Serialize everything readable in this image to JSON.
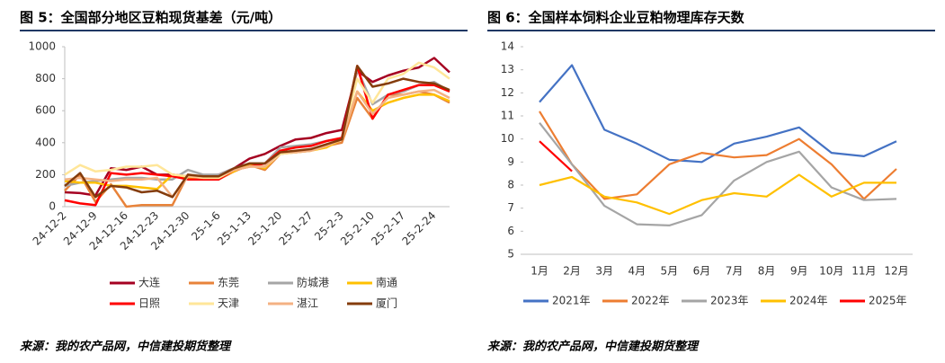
{
  "chart_data": [
    {
      "type": "line",
      "title": "图 5：全国部分地区豆粕现货基差（元/吨）",
      "source": "来源：我的农产品网，中信建投期货整理",
      "categories": [
        "24-12-2",
        null,
        "24-12-9",
        null,
        "24-12-16",
        null,
        "24-12-23",
        null,
        "24-12-30",
        null,
        "25-1-6",
        null,
        "25-1-13",
        null,
        "25-1-20",
        null,
        "25-1-27",
        null,
        "25-2-3",
        null,
        "25-2-10",
        null,
        "25-2-17",
        null,
        "25-2-24",
        null
      ],
      "ylim": [
        0,
        1000
      ],
      "yticks": [
        0,
        200,
        400,
        600,
        800,
        1000
      ],
      "series": [
        {
          "name": "大连",
          "color": "#a50021",
          "values": [
            90,
            85,
            70,
            240,
            230,
            250,
            200,
            200,
            190,
            185,
            200,
            240,
            300,
            330,
            380,
            420,
            430,
            460,
            480,
            850,
            780,
            820,
            850,
            870,
            930,
            840
          ]
        },
        {
          "name": "东莞",
          "color": "#e8833a",
          "values": [
            100,
            200,
            30,
            140,
            0,
            10,
            10,
            10,
            200,
            170,
            170,
            220,
            260,
            230,
            330,
            340,
            350,
            380,
            400,
            680,
            550,
            700,
            700,
            720,
            700,
            650
          ]
        },
        {
          "name": "防城港",
          "color": "#a6a6a6",
          "values": [
            130,
            150,
            160,
            170,
            180,
            180,
            170,
            170,
            230,
            200,
            200,
            240,
            270,
            270,
            370,
            380,
            390,
            410,
            430,
            860,
            640,
            700,
            720,
            760,
            780,
            720
          ]
        },
        {
          "name": "南通",
          "color": "#ffc000",
          "values": [
            160,
            150,
            150,
            130,
            130,
            120,
            110,
            200,
            180,
            170,
            180,
            220,
            270,
            240,
            340,
            340,
            350,
            370,
            420,
            720,
            600,
            650,
            680,
            700,
            700,
            660
          ]
        },
        {
          "name": "日照",
          "color": "#ff0000",
          "values": [
            40,
            20,
            10,
            210,
            200,
            210,
            200,
            190,
            170,
            170,
            170,
            230,
            250,
            270,
            350,
            370,
            380,
            410,
            430,
            880,
            550,
            700,
            730,
            760,
            760,
            720
          ]
        },
        {
          "name": "天津",
          "color": "#ffe699",
          "values": [
            200,
            260,
            220,
            230,
            250,
            250,
            260,
            200,
            190,
            180,
            180,
            230,
            250,
            250,
            330,
            340,
            350,
            380,
            420,
            800,
            650,
            800,
            830,
            900,
            870,
            800
          ]
        },
        {
          "name": "湛江",
          "color": "#f4b183",
          "values": [
            170,
            180,
            170,
            160,
            170,
            170,
            180,
            60,
            190,
            190,
            190,
            230,
            250,
            250,
            340,
            340,
            350,
            380,
            420,
            720,
            580,
            680,
            700,
            720,
            730,
            680
          ]
        },
        {
          "name": "厦门",
          "color": "#843c0c",
          "values": [
            130,
            210,
            60,
            130,
            120,
            90,
            100,
            60,
            200,
            190,
            190,
            240,
            270,
            270,
            340,
            350,
            360,
            390,
            420,
            880,
            750,
            770,
            800,
            780,
            770,
            730
          ]
        }
      ]
    },
    {
      "type": "line",
      "title": "图 6：全国样本饲料企业豆粕物理库存天数",
      "source": "来源：我的农产品网，中信建投期货整理",
      "categories": [
        "1月",
        "2月",
        "3月",
        "4月",
        "5月",
        "6月",
        "7月",
        "8月",
        "9月",
        "10月",
        "11月",
        "12月"
      ],
      "ylim": [
        5,
        14
      ],
      "yticks": [
        5,
        6,
        7,
        8,
        9,
        10,
        11,
        12,
        13,
        14
      ],
      "series": [
        {
          "name": "2021年",
          "color": "#4472c4",
          "values": [
            11.6,
            13.2,
            10.4,
            9.8,
            9.1,
            9.0,
            9.8,
            10.1,
            10.5,
            9.4,
            9.25,
            9.9
          ]
        },
        {
          "name": "2022年",
          "color": "#ed7d31",
          "values": [
            11.2,
            8.9,
            7.4,
            7.6,
            8.9,
            9.4,
            9.2,
            9.3,
            10.0,
            8.9,
            7.4,
            8.7
          ]
        },
        {
          "name": "2023年",
          "color": "#a5a5a5",
          "values": [
            10.7,
            8.9,
            7.1,
            6.3,
            6.25,
            6.7,
            8.2,
            9.0,
            9.45,
            7.9,
            7.35,
            7.4
          ]
        },
        {
          "name": "2024年",
          "color": "#ffc000",
          "values": [
            8.0,
            8.35,
            7.5,
            7.25,
            6.75,
            7.35,
            7.65,
            7.5,
            8.45,
            7.5,
            8.1,
            8.1
          ]
        },
        {
          "name": "2025年",
          "color": "#ff0000",
          "values": [
            9.9,
            8.6,
            null,
            null,
            null,
            null,
            null,
            null,
            null,
            null,
            null,
            null
          ]
        }
      ]
    }
  ]
}
